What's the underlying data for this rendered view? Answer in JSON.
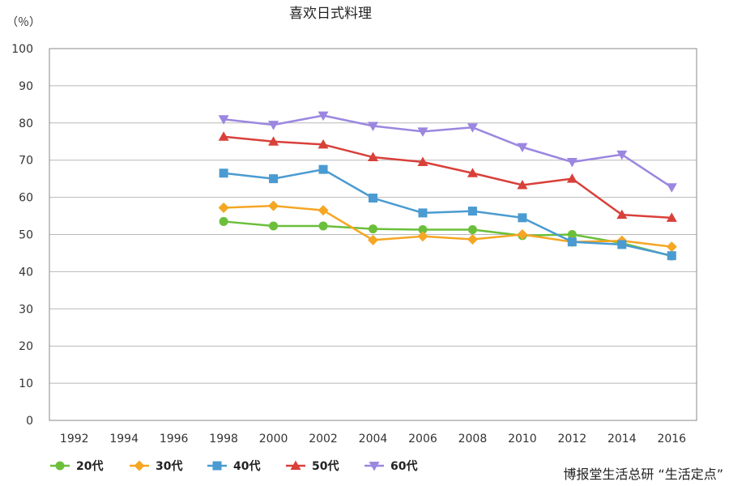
{
  "chart_data": {
    "type": "line",
    "title": "喜欢日式料理",
    "ylabel": "（％）",
    "xlabel": "",
    "ylim": [
      0,
      100
    ],
    "yticks": [
      0,
      10,
      20,
      30,
      40,
      50,
      60,
      70,
      80,
      90,
      100
    ],
    "categories": [
      "1992",
      "1994",
      "1996",
      "1998",
      "2000",
      "2002",
      "2004",
      "2006",
      "2008",
      "2010",
      "2012",
      "2014",
      "2016"
    ],
    "grid": true,
    "legend_position": "bottom-left",
    "series": [
      {
        "name": "20代",
        "color": "#6BBF3A",
        "marker": "circle",
        "values": [
          null,
          null,
          null,
          53.5,
          52.3,
          52.3,
          51.5,
          51.3,
          51.3,
          49.7,
          50.0,
          47.7,
          44.2
        ]
      },
      {
        "name": "30代",
        "color": "#F5A623",
        "marker": "diamond",
        "values": [
          null,
          null,
          null,
          57.2,
          57.7,
          56.5,
          48.5,
          49.5,
          48.7,
          50.0,
          48.0,
          48.3,
          46.7
        ]
      },
      {
        "name": "40代",
        "color": "#4A9BD1",
        "marker": "square",
        "values": [
          null,
          null,
          null,
          66.5,
          65.0,
          67.5,
          59.8,
          55.8,
          56.3,
          54.5,
          48.0,
          47.3,
          44.3
        ]
      },
      {
        "name": "50代",
        "color": "#D9403A",
        "marker": "triangle-up",
        "values": [
          null,
          null,
          null,
          76.3,
          75.0,
          74.2,
          70.8,
          69.5,
          66.5,
          63.3,
          65.0,
          55.3,
          54.5
        ]
      },
      {
        "name": "60代",
        "color": "#9B87E0",
        "marker": "triangle-down",
        "values": [
          null,
          null,
          null,
          81.0,
          79.5,
          82.0,
          79.2,
          77.7,
          78.8,
          73.5,
          69.5,
          71.5,
          62.7
        ]
      }
    ]
  },
  "source_note": "博报堂生活总研 “生活定点”"
}
